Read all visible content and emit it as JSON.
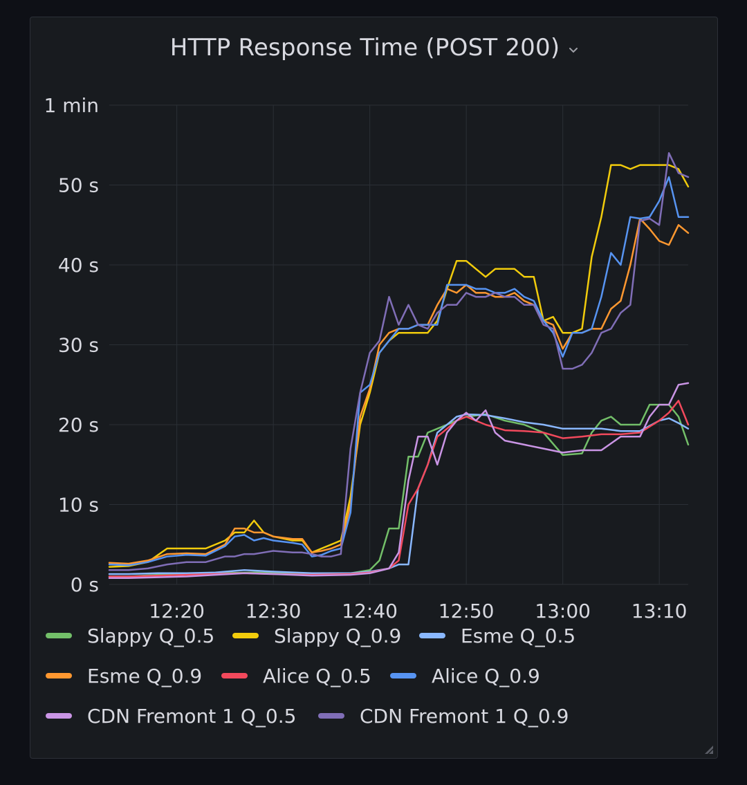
{
  "panel": {
    "title": "HTTP Response Time (POST 200)"
  },
  "colors": {
    "background": "#0e1016",
    "panel": "#181b1f",
    "grid": "#2b2f36",
    "text": "#ccccdc"
  },
  "chart_data": {
    "type": "line",
    "title": "HTTP Response Time (POST 200)",
    "x_ticks": [
      "12:20",
      "12:30",
      "12:40",
      "12:50",
      "13:00",
      "13:10"
    ],
    "x_tick_minutes": [
      20,
      30,
      40,
      50,
      60,
      70
    ],
    "xlim_minutes": [
      13,
      73
    ],
    "y_ticks": [
      {
        "value": 0,
        "label": "0 s"
      },
      {
        "value": 10,
        "label": "10 s"
      },
      {
        "value": 20,
        "label": "20 s"
      },
      {
        "value": 30,
        "label": "30 s"
      },
      {
        "value": 40,
        "label": "40 s"
      },
      {
        "value": 50,
        "label": "50 s"
      },
      {
        "value": 60,
        "label": "1 min"
      }
    ],
    "ylim": [
      0,
      60
    ],
    "legend_position": "bottom",
    "grid": true,
    "series": [
      {
        "name": "Slappy Q_0.5",
        "color": "#73bf69",
        "x": [
          13,
          15,
          18,
          20,
          24,
          28,
          32,
          35,
          38,
          40,
          41,
          42,
          43,
          44,
          45,
          46,
          47,
          48,
          50,
          52,
          54,
          56,
          58,
          60,
          62,
          63,
          64,
          65,
          66,
          67,
          68,
          69,
          70,
          71,
          72,
          73
        ],
        "y": [
          1,
          1,
          1.2,
          1.3,
          1.4,
          1.5,
          1.4,
          1.3,
          1.4,
          1.8,
          3,
          7,
          7,
          16,
          16,
          19,
          19.5,
          20,
          21,
          21.3,
          20.5,
          20,
          19,
          16.2,
          16.4,
          19,
          20.5,
          21,
          20,
          20,
          20,
          22.5,
          22.5,
          22.5,
          21,
          17.5
        ]
      },
      {
        "name": "Slappy Q_0.9",
        "color": "#f2cc0c",
        "x": [
          13,
          15,
          17,
          19,
          21,
          23,
          25,
          26,
          27,
          28,
          29,
          30,
          32,
          33,
          34,
          35,
          36,
          37,
          38,
          39,
          40,
          41,
          42,
          43,
          44,
          45,
          46,
          47,
          48,
          49,
          50,
          51,
          52,
          53,
          54,
          55,
          56,
          57,
          58,
          59,
          60,
          61,
          62,
          63,
          64,
          65,
          66,
          67,
          68,
          69,
          70,
          71,
          72,
          73
        ],
        "y": [
          2.2,
          2.3,
          2.8,
          4.5,
          4.5,
          4.5,
          5.5,
          6.5,
          6.5,
          8,
          6.5,
          6,
          5.5,
          5.5,
          4,
          4.5,
          5,
          5.5,
          11,
          20,
          24,
          29,
          30.5,
          31.5,
          31.5,
          31.5,
          31.5,
          33,
          37,
          40.5,
          40.5,
          39.5,
          38.5,
          39.5,
          39.5,
          39.5,
          38.5,
          38.5,
          33,
          33.5,
          31.5,
          31.5,
          32,
          41,
          46,
          52.5,
          52.5,
          52,
          52.5,
          52.5,
          52.5,
          52.5,
          52,
          49.8
        ]
      },
      {
        "name": "Esme Q_0.5",
        "color": "#8ab8ff",
        "x": [
          13,
          15,
          18,
          21,
          24,
          27,
          30,
          34,
          38,
          40,
          42,
          43,
          44,
          45,
          46,
          47,
          48,
          49,
          50,
          52,
          54,
          56,
          58,
          60,
          62,
          64,
          66,
          68,
          70,
          71,
          72,
          73
        ],
        "y": [
          1.3,
          1.3,
          1.4,
          1.4,
          1.5,
          1.8,
          1.6,
          1.4,
          1.4,
          1.6,
          2,
          2.5,
          2.5,
          12,
          15,
          19,
          20,
          21,
          21.3,
          21.2,
          20.8,
          20.3,
          20,
          19.5,
          19.5,
          19.5,
          19.2,
          19.2,
          20.5,
          20.8,
          20.2,
          19.5
        ]
      },
      {
        "name": "Esme Q_0.9",
        "color": "#ff9830",
        "x": [
          13,
          15,
          17,
          19,
          21,
          23,
          25,
          26,
          27,
          28,
          29,
          30,
          32,
          33,
          34,
          35,
          36,
          37,
          38,
          39,
          40,
          41,
          42,
          43,
          44,
          45,
          46,
          47,
          48,
          49,
          50,
          51,
          52,
          53,
          54,
          55,
          56,
          57,
          58,
          59,
          60,
          61,
          62,
          63,
          64,
          65,
          66,
          67,
          68,
          69,
          70,
          71,
          72,
          73
        ],
        "y": [
          2.7,
          2.6,
          3,
          3.8,
          3.9,
          3.8,
          5,
          7,
          7,
          6.5,
          6.5,
          6,
          5.7,
          5.7,
          4,
          4.2,
          4.5,
          5,
          10,
          21,
          24.5,
          30,
          31.5,
          32,
          32,
          32.5,
          32.5,
          35,
          37,
          36.5,
          37.5,
          36.5,
          36.5,
          36,
          36,
          36.5,
          35.5,
          35,
          33,
          32.5,
          29.5,
          31.5,
          31.5,
          32,
          32,
          34.5,
          35.5,
          40,
          45.8,
          44.5,
          43,
          42.5,
          45,
          44
        ]
      },
      {
        "name": "Alice Q_0.5",
        "color": "#f2495c",
        "x": [
          13,
          15,
          18,
          21,
          24,
          27,
          30,
          34,
          38,
          40,
          42,
          43,
          44,
          45,
          46,
          47,
          48,
          49,
          50,
          52,
          54,
          56,
          58,
          60,
          62,
          64,
          66,
          68,
          70,
          71,
          72,
          73
        ],
        "y": [
          1,
          1,
          1.1,
          1.2,
          1.3,
          1.4,
          1.3,
          1.2,
          1.3,
          1.5,
          2,
          3,
          10,
          12,
          15,
          18.5,
          19.5,
          20.5,
          21,
          20,
          19.3,
          19.2,
          19,
          18.3,
          18.5,
          18.8,
          18.8,
          19,
          20.5,
          21.5,
          23,
          20
        ]
      },
      {
        "name": "Alice Q_0.9",
        "color": "#5794f2",
        "x": [
          13,
          15,
          17,
          19,
          21,
          23,
          25,
          26,
          27,
          28,
          29,
          30,
          32,
          33,
          34,
          35,
          36,
          37,
          38,
          39,
          40,
          41,
          42,
          43,
          44,
          45,
          46,
          47,
          48,
          49,
          50,
          51,
          52,
          53,
          54,
          55,
          56,
          57,
          58,
          59,
          60,
          61,
          62,
          63,
          64,
          65,
          66,
          67,
          68,
          69,
          70,
          71,
          72,
          73
        ],
        "y": [
          2.5,
          2.4,
          2.8,
          3.5,
          3.7,
          3.6,
          4.8,
          6,
          6.2,
          5.5,
          5.8,
          5.5,
          5.2,
          5,
          3.5,
          3.7,
          4.2,
          4.5,
          9,
          24,
          25,
          29,
          30.5,
          32,
          32,
          32.5,
          32.5,
          32.5,
          37.5,
          37.5,
          37.5,
          37,
          37,
          36.5,
          36.5,
          37,
          36,
          35.5,
          33,
          31.5,
          28.5,
          31.5,
          31.5,
          32,
          36,
          41.5,
          40,
          46,
          45.8,
          46,
          48,
          51,
          46,
          46
        ]
      },
      {
        "name": "CDN Fremont 1 Q_0.5",
        "color": "#ca95e5",
        "x": [
          13,
          15,
          18,
          21,
          24,
          27,
          30,
          34,
          38,
          40,
          42,
          43,
          44,
          45,
          46,
          47,
          48,
          49,
          50,
          51,
          52,
          53,
          54,
          56,
          58,
          60,
          62,
          64,
          66,
          68,
          69,
          70,
          71,
          72,
          73
        ],
        "y": [
          0.8,
          0.8,
          0.9,
          1,
          1.2,
          1.4,
          1.3,
          1.1,
          1.2,
          1.4,
          2,
          4,
          13,
          18.5,
          18.5,
          15,
          19,
          20.5,
          21.5,
          20.5,
          21.8,
          19,
          18,
          17.5,
          17,
          16.5,
          16.8,
          16.8,
          18.5,
          18.5,
          21,
          22.5,
          22.5,
          25,
          25.2
        ]
      },
      {
        "name": "CDN Fremont 1 Q_0.9",
        "color": "#806eb7",
        "x": [
          13,
          15,
          17,
          19,
          21,
          23,
          25,
          26,
          27,
          28,
          29,
          30,
          32,
          33,
          34,
          35,
          36,
          37,
          38,
          39,
          40,
          41,
          42,
          43,
          44,
          45,
          46,
          47,
          48,
          49,
          50,
          51,
          52,
          53,
          54,
          55,
          56,
          57,
          58,
          59,
          60,
          61,
          62,
          63,
          64,
          65,
          66,
          67,
          68,
          69,
          70,
          71,
          72,
          73
        ],
        "y": [
          1.8,
          1.8,
          2,
          2.5,
          2.8,
          2.8,
          3.5,
          3.5,
          3.8,
          3.8,
          4,
          4.2,
          4,
          4,
          3.8,
          3.5,
          3.5,
          3.8,
          17,
          24,
          29,
          30.5,
          36,
          32.5,
          35,
          32.5,
          32,
          34,
          35,
          35,
          36.5,
          36,
          36,
          36.5,
          36,
          36,
          35,
          35,
          32.5,
          32,
          27,
          27,
          27.5,
          29,
          31.5,
          32,
          34,
          35,
          45.5,
          45.8,
          45,
          54,
          51.5,
          51
        ]
      }
    ]
  }
}
